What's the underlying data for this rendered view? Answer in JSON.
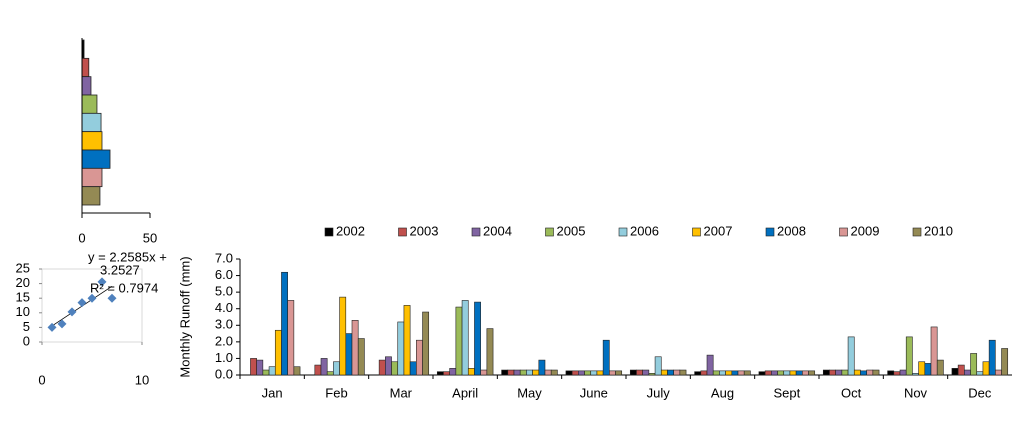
{
  "chart_data": [
    {
      "type": "bar",
      "orientation": "horizontal",
      "categories": [
        null,
        null,
        null,
        null,
        null,
        null,
        null,
        null,
        null
      ],
      "values": [
        1.5,
        5,
        6.6,
        11,
        14,
        14.7,
        20.6,
        14.7,
        13.2
      ],
      "colors": [
        "#000000",
        "#c0504d",
        "#8064a2",
        "#9bbb59",
        "#93cddd",
        "#ffc000",
        "#0070c0",
        "#d99694",
        "#948a54"
      ],
      "xlim": [
        0,
        50
      ],
      "xticks": [
        0,
        50
      ]
    },
    {
      "type": "scatter",
      "x": [
        1,
        2,
        3,
        4,
        5,
        6,
        7
      ],
      "values": [
        5,
        6.2,
        10.3,
        13.5,
        15,
        20.6,
        15
      ],
      "color": "#4f81bd",
      "xlim": [
        0,
        10
      ],
      "xticks": [
        0,
        10
      ],
      "ylim": [
        0,
        25
      ],
      "yticks": [
        0,
        5,
        10,
        15,
        20,
        25
      ],
      "trendline": {
        "slope": 2.2585,
        "intercept": 3.2527
      },
      "annotations": [
        "y = 2.2585x +",
        "3.2527",
        "R² = 0.7974"
      ]
    },
    {
      "type": "grouped-bar",
      "y_label": "Monthly  Runoff (mm)",
      "categories": [
        "Jan",
        "Feb",
        "Mar",
        "April",
        "May",
        "June",
        "July",
        "Aug",
        "Sept",
        "Oct",
        "Nov",
        "Dec"
      ],
      "ylim": [
        0,
        7
      ],
      "yticks": [
        {
          "value": 0,
          "label": "0.0"
        },
        {
          "value": 1,
          "label": "1.0"
        },
        {
          "value": 2,
          "label": "2.0"
        },
        {
          "value": 3,
          "label": "3.0"
        },
        {
          "value": 4,
          "label": "4.0"
        },
        {
          "value": 5,
          "label": "5.0"
        },
        {
          "value": 6,
          "label": "6.0"
        },
        {
          "value": 7,
          "label": "7.0"
        }
      ],
      "series": [
        {
          "name": "2002",
          "color": "#000000",
          "values": [
            0,
            0,
            0,
            0.2,
            0.3,
            0.25,
            0.3,
            0.2,
            0.2,
            0.3,
            0.25,
            0.4
          ]
        },
        {
          "name": "2003",
          "color": "#c0504d",
          "values": [
            1.0,
            0.6,
            0.9,
            0.2,
            0.3,
            0.25,
            0.3,
            0.25,
            0.25,
            0.3,
            0.2,
            0.6
          ]
        },
        {
          "name": "2004",
          "color": "#8064a2",
          "values": [
            0.9,
            1.0,
            1.1,
            0.4,
            0.3,
            0.25,
            0.3,
            1.2,
            0.25,
            0.3,
            0.3,
            0.3
          ]
        },
        {
          "name": "2005",
          "color": "#9bbb59",
          "values": [
            0.3,
            0.2,
            0.8,
            4.1,
            0.3,
            0.25,
            0.1,
            0.25,
            0.25,
            0.3,
            2.3,
            1.3
          ]
        },
        {
          "name": "2006",
          "color": "#93cddd",
          "values": [
            0.5,
            0.8,
            3.2,
            4.5,
            0.3,
            0.25,
            1.1,
            0.25,
            0.25,
            2.3,
            0.1,
            0.2
          ]
        },
        {
          "name": "2007",
          "color": "#ffc000",
          "values": [
            2.7,
            4.7,
            4.2,
            0.4,
            0.3,
            0.25,
            0.3,
            0.25,
            0.25,
            0.3,
            0.8,
            0.8
          ]
        },
        {
          "name": "2008",
          "color": "#0070c0",
          "values": [
            6.2,
            2.5,
            0.8,
            4.4,
            0.9,
            2.1,
            0.3,
            0.25,
            0.25,
            0.25,
            0.7,
            2.1
          ]
        },
        {
          "name": "2009",
          "color": "#d99694",
          "values": [
            4.5,
            3.3,
            2.1,
            0.3,
            0.3,
            0.25,
            0.3,
            0.25,
            0.25,
            0.3,
            2.9,
            0.3
          ]
        },
        {
          "name": "2010",
          "color": "#948a54",
          "values": [
            0.5,
            2.2,
            3.8,
            2.8,
            0.3,
            0.25,
            0.3,
            0.25,
            0.25,
            0.3,
            0.9,
            1.6
          ]
        }
      ]
    }
  ]
}
